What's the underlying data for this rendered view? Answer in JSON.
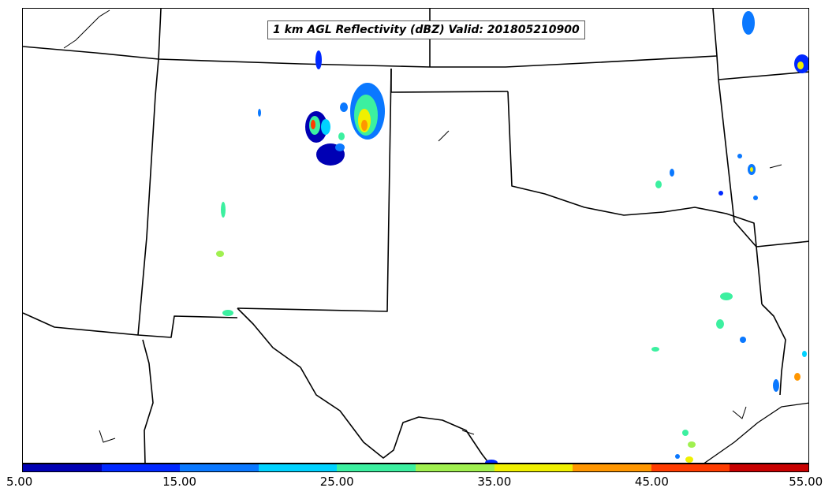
{
  "title": "1 km AGL Reflectivity (dBZ) Valid: 201805210900",
  "colorbar": {
    "colors": [
      "#0000b4",
      "#0028ff",
      "#0a78ff",
      "#00d2ff",
      "#3cf0a0",
      "#a0f050",
      "#f0f000",
      "#ff9600",
      "#ff3c00",
      "#c80000"
    ],
    "tick_labels": [
      "5.00",
      "15.00",
      "25.00",
      "35.00",
      "45.00",
      "55.00"
    ]
  },
  "legend_range_dbz": [
    5,
    55
  ]
}
